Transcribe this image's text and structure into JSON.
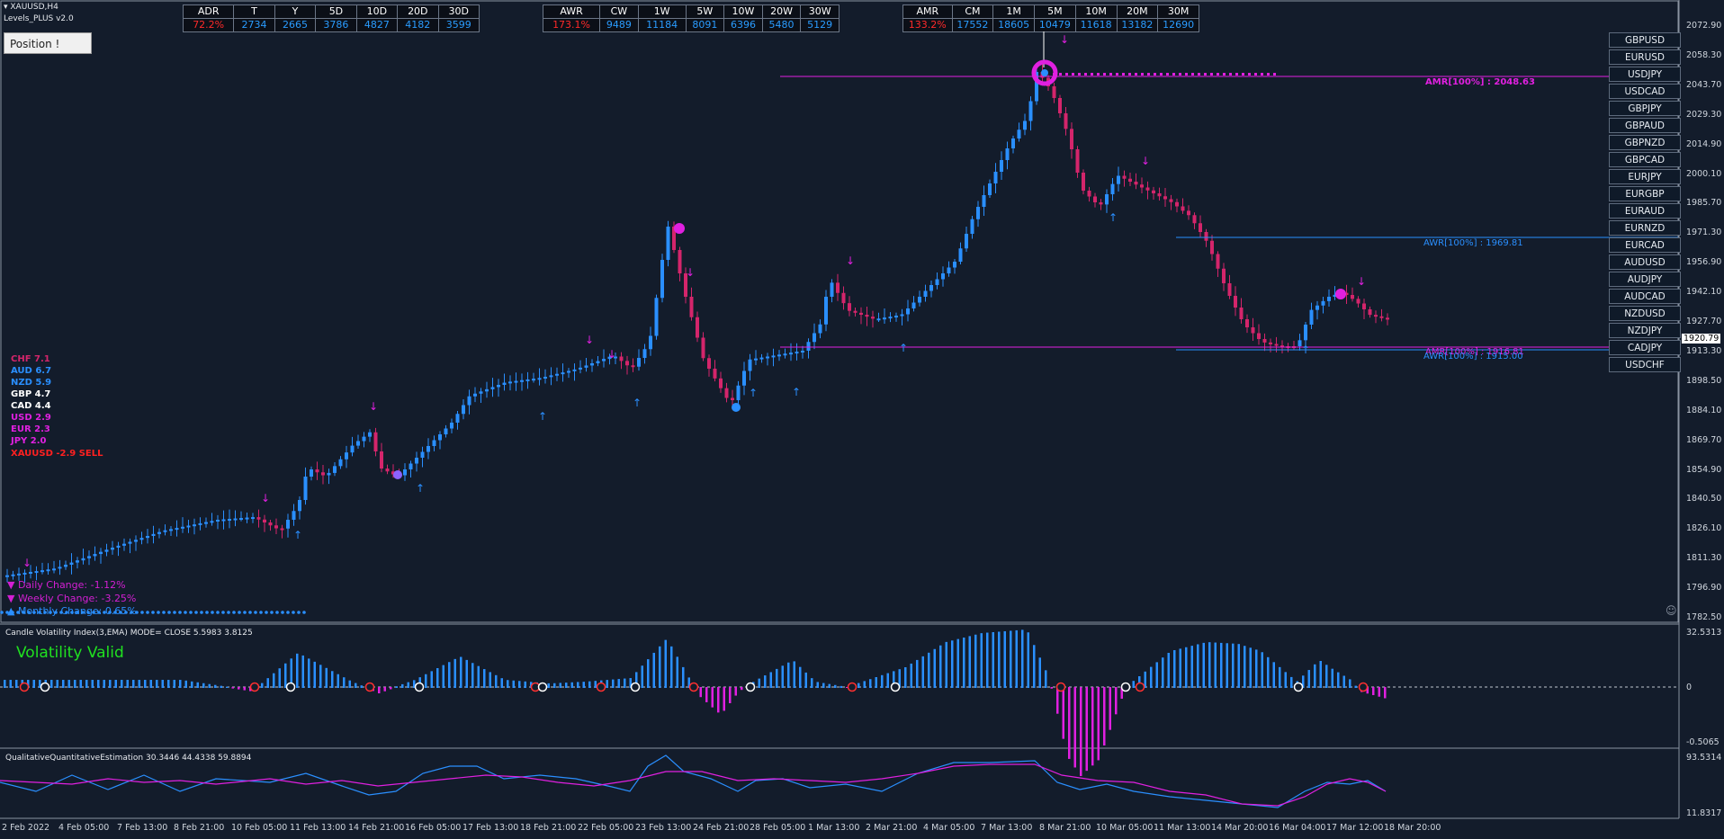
{
  "window": {
    "symbol": "XAUUSD,H4",
    "indicator": "Levels_PLUS v2.0"
  },
  "position_button": "Position !",
  "daily_table": {
    "headers": [
      "ADR",
      "T",
      "Y",
      "5D",
      "10D",
      "20D",
      "30D"
    ],
    "values": [
      "72.2%",
      "2734",
      "2665",
      "3786",
      "4827",
      "4182",
      "3599"
    ]
  },
  "weekly_table": {
    "headers": [
      "AWR",
      "CW",
      "1W",
      "5W",
      "10W",
      "20W",
      "30W"
    ],
    "values": [
      "173.1%",
      "9489",
      "11184",
      "8091",
      "6396",
      "5480",
      "5129"
    ]
  },
  "monthly_table": {
    "headers": [
      "AMR",
      "CM",
      "1M",
      "5M",
      "10M",
      "20M",
      "30M"
    ],
    "values": [
      "133.2%",
      "17552",
      "18605",
      "10479",
      "11618",
      "13182",
      "12690"
    ]
  },
  "pairs": [
    "GBPUSD",
    "EURUSD",
    "USDJPY",
    "USDCAD",
    "GBPJPY",
    "GBPAUD",
    "GBPNZD",
    "GBPCAD",
    "EURJPY",
    "EURGBP",
    "EURAUD",
    "EURNZD",
    "EURCAD",
    "AUDUSD",
    "AUDJPY",
    "AUDCAD",
    "NZDUSD",
    "NZDJPY",
    "CADJPY",
    "USDCHF"
  ],
  "price_axis": [
    "2072.90",
    "2058.30",
    "2043.70",
    "2029.30",
    "2014.90",
    "2000.10",
    "1985.70",
    "1971.30",
    "1956.90",
    "1942.10",
    "1927.70",
    "1913.30",
    "1898.50",
    "1884.10",
    "1869.70",
    "1854.90",
    "1840.50",
    "1826.10",
    "1811.30",
    "1796.90",
    "1782.50"
  ],
  "current_price": "1920.79",
  "levels": {
    "amr": "AMR[100%] : 2048.63",
    "awr_high": "AWR[100%] : 1969.81",
    "awr_low": "AWR[100%] : 1915.00",
    "amr_low": "AMR[100%] : 1916.81"
  },
  "strength": [
    {
      "ccy": "CHF",
      "val": "7.1",
      "color": "#d4256b"
    },
    {
      "ccy": "AUD",
      "val": "6.7",
      "color": "#2a8fff"
    },
    {
      "ccy": "NZD",
      "val": "5.9",
      "color": "#2a8fff"
    },
    {
      "ccy": "GBP",
      "val": "4.7",
      "color": "#ffffff"
    },
    {
      "ccy": "CAD",
      "val": "4.4",
      "color": "#ffffff"
    },
    {
      "ccy": "USD",
      "val": "2.9",
      "color": "#e020e0"
    },
    {
      "ccy": "EUR",
      "val": "2.3",
      "color": "#e020e0"
    },
    {
      "ccy": "JPY",
      "val": "2.0",
      "color": "#e020e0"
    }
  ],
  "signal": "XAUUSD -2.9 SELL",
  "changes": {
    "daily": "▼ Daily Change: -1.12%",
    "weekly": "▼ Weekly Change: -3.25%",
    "monthly": "▲ Monthly Change: 0.65%"
  },
  "cvi": {
    "title": "Candle Volatility Index(3,EMA) MODE= CLOSE 5.5983 3.8125",
    "status": "Volatility Valid",
    "axis_top": "32.5313",
    "axis_zero": "0",
    "axis_bottom": "-0.5065"
  },
  "qqe": {
    "title": "QualitativeQuantitativeEstimation 30.3446 44.4338 59.8894",
    "axis_top": "93.5314",
    "axis_bottom": "11.8317"
  },
  "dates": [
    "2 Feb 2022",
    "4 Feb 05:00",
    "7 Feb 13:00",
    "8 Feb 21:00",
    "10 Feb 05:00",
    "11 Feb 13:00",
    "14 Feb 21:00",
    "16 Feb 05:00",
    "17 Feb 13:00",
    "18 Feb 21:00",
    "22 Feb 05:00",
    "23 Feb 13:00",
    "24 Feb 21:00",
    "28 Feb 05:00",
    "1 Mar 13:00",
    "2 Mar 21:00",
    "4 Mar 05:00",
    "7 Mar 13:00",
    "8 Mar 21:00",
    "10 Mar 05:00",
    "11 Mar 13:00",
    "14 Mar 20:00",
    "16 Mar 04:00",
    "17 Mar 12:00",
    "18 Mar 20:00"
  ],
  "colors": {
    "bull": "#2a8fff",
    "bear": "#d4256b",
    "magenta": "#e020e0",
    "bg": "#131c2b"
  }
}
